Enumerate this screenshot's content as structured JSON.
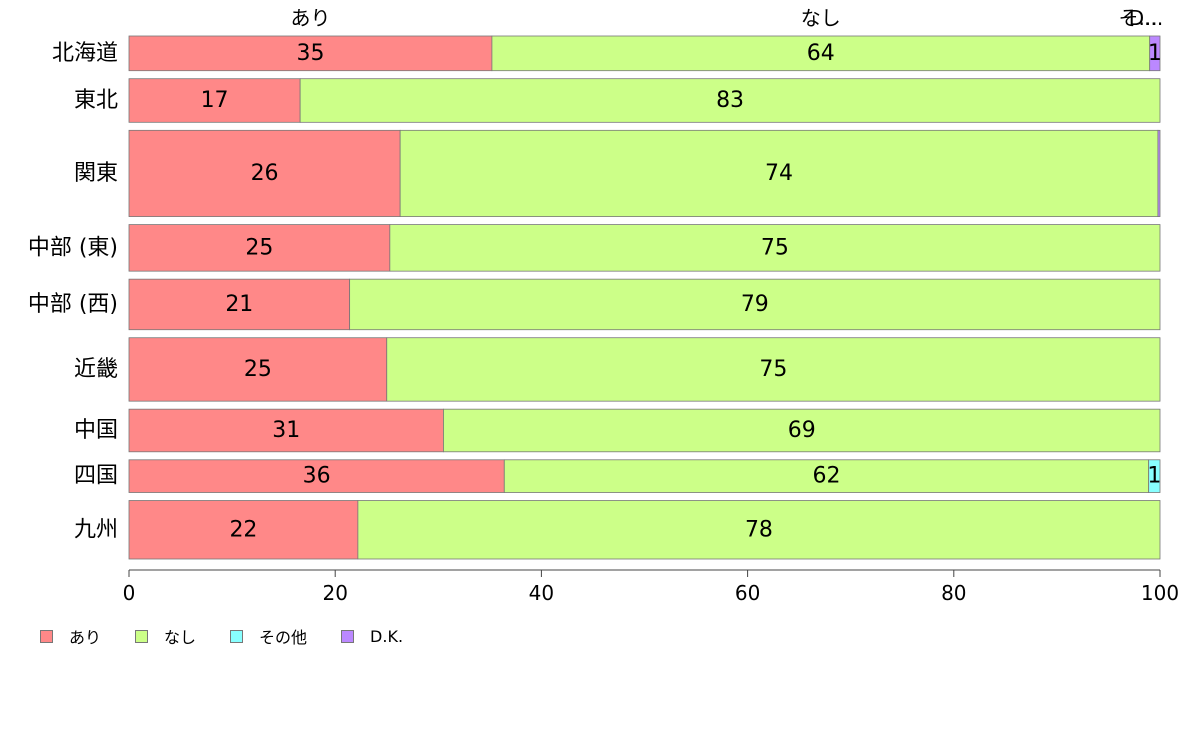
{
  "chart_data": {
    "type": "bar",
    "orientation": "horizontal",
    "stacked": true,
    "variable_width": true,
    "categories": [
      "北海道",
      "東北",
      "関東",
      "中部 (東)",
      "中部 (西)",
      "近畿",
      "中国",
      "四国",
      "九州"
    ],
    "series": [
      {
        "name": "あり",
        "color": "#ff8888",
        "values": [
          35.2,
          16.6,
          26.3,
          25.3,
          21.4,
          25.0,
          30.5,
          36.4,
          22.2
        ]
      },
      {
        "name": "なし",
        "color": "#ccff88",
        "values": [
          63.8,
          83.4,
          73.5,
          74.7,
          78.6,
          75.0,
          69.5,
          62.5,
          77.8
        ]
      },
      {
        "name": "その他",
        "color": "#88ffff",
        "values": [
          0,
          0,
          0,
          0,
          0,
          0,
          0,
          1.1,
          0
        ]
      },
      {
        "name": "D.K.",
        "color": "#bb88ff",
        "values": [
          1.0,
          0,
          0.2,
          0,
          0,
          0,
          0,
          0,
          0
        ]
      }
    ],
    "data_labels": [
      [
        "35",
        "64",
        "",
        "1"
      ],
      [
        "17",
        "83",
        "",
        ""
      ],
      [
        "26",
        "74",
        "",
        ""
      ],
      [
        "25",
        "75",
        "",
        ""
      ],
      [
        "21",
        "79",
        "",
        ""
      ],
      [
        "25",
        "75",
        "",
        ""
      ],
      [
        "31",
        "69",
        "",
        ""
      ],
      [
        "36",
        "62",
        "1",
        ""
      ],
      [
        "22",
        "78",
        "",
        ""
      ]
    ],
    "relative_widths": [
      35,
      44,
      87,
      47,
      51,
      64,
      43,
      33,
      59
    ],
    "top_labels": [
      "あり",
      "なし",
      "そ...",
      "D..."
    ],
    "x_ticks": [
      0,
      20,
      40,
      60,
      80,
      100
    ],
    "xlim": [
      0,
      100
    ],
    "grid": false,
    "legend_position": "bottom-left"
  }
}
